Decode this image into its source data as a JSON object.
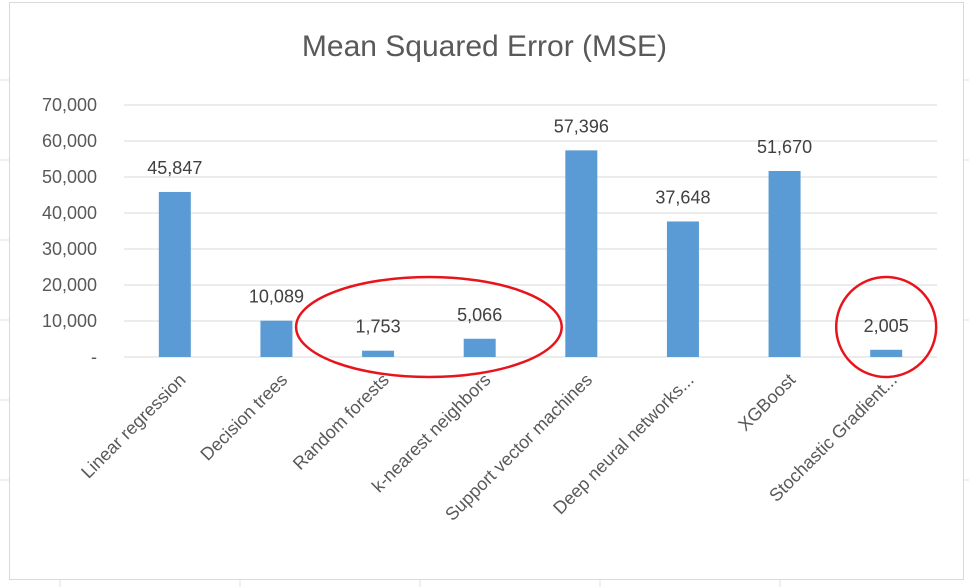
{
  "chart_data": {
    "type": "bar",
    "title": "Mean Squared Error (MSE)",
    "xlabel": "",
    "ylabel": "",
    "ylim": [
      0,
      70000
    ],
    "yticks": [
      0,
      10000,
      20000,
      30000,
      40000,
      50000,
      60000,
      70000
    ],
    "ytick_labels": [
      "-",
      "10,000",
      "20,000",
      "30,000",
      "40,000",
      "50,000",
      "60,000",
      "70,000"
    ],
    "categories": [
      "Linear regression",
      "Decision trees",
      "Random forests",
      "k-nearest neighbors",
      "Support vector machines",
      "Deep neural networks...",
      "XGBoost",
      "Stochastic Gradient..."
    ],
    "values": [
      45847,
      10089,
      1753,
      5066,
      57396,
      37648,
      51670,
      2005
    ],
    "data_labels": [
      "45,847",
      "10,089",
      "1,753",
      "5,066",
      "57,396",
      "37,648",
      "51,670",
      "2,005"
    ],
    "grid": true,
    "legend": "none",
    "bar_color": "#5b9bd5",
    "gridline_color": "#d9d9d9",
    "highlight_color": "#e8141c",
    "highlighted_groups": [
      [
        "Random forests",
        "k-nearest neighbors"
      ],
      [
        "Stochastic Gradient..."
      ]
    ]
  }
}
